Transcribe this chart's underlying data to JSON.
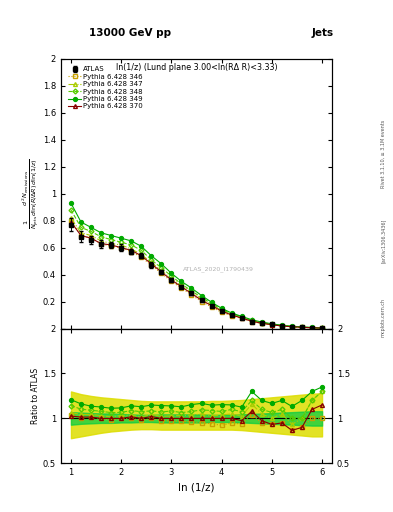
{
  "title_top": "13000 GeV pp",
  "title_right": "Jets",
  "panel_title": "ln(1/z) (Lund plane 3.00<ln(RΔ R)<3.33)",
  "xlabel": "ln (1/z)",
  "ylabel_ratio": "Ratio to ATLAS",
  "watermark": "ATLAS_2020_I1790439",
  "right_label": "Rivet 3.1.10, ≥ 3.1M events",
  "right_label2": "[arXiv:1306.3436]",
  "right_label3": "mcplots.cern.ch",
  "x_data": [
    1.0,
    1.2,
    1.4,
    1.6,
    1.8,
    2.0,
    2.2,
    2.4,
    2.6,
    2.8,
    3.0,
    3.2,
    3.4,
    3.6,
    3.8,
    4.0,
    4.2,
    4.4,
    4.6,
    4.8,
    5.0,
    5.2,
    5.4,
    5.6,
    5.8,
    6.0
  ],
  "atlas_y": [
    0.77,
    0.68,
    0.66,
    0.63,
    0.62,
    0.6,
    0.57,
    0.54,
    0.47,
    0.42,
    0.36,
    0.31,
    0.26,
    0.21,
    0.17,
    0.13,
    0.1,
    0.08,
    0.05,
    0.04,
    0.03,
    0.02,
    0.015,
    0.01,
    0.005,
    0.002
  ],
  "atlas_err": [
    0.05,
    0.04,
    0.03,
    0.03,
    0.025,
    0.025,
    0.02,
    0.02,
    0.02,
    0.015,
    0.012,
    0.01,
    0.009,
    0.008,
    0.007,
    0.006,
    0.005,
    0.004,
    0.003,
    0.003,
    0.002,
    0.002,
    0.0015,
    0.001,
    0.001,
    0.0005
  ],
  "p346_y": [
    0.8,
    0.69,
    0.67,
    0.63,
    0.61,
    0.6,
    0.57,
    0.53,
    0.47,
    0.41,
    0.35,
    0.3,
    0.25,
    0.2,
    0.16,
    0.12,
    0.095,
    0.075,
    0.052,
    0.038,
    0.028,
    0.019,
    0.013,
    0.009,
    0.005,
    0.002
  ],
  "p347_y": [
    0.82,
    0.71,
    0.69,
    0.65,
    0.63,
    0.62,
    0.59,
    0.55,
    0.49,
    0.43,
    0.37,
    0.32,
    0.27,
    0.22,
    0.175,
    0.135,
    0.105,
    0.082,
    0.058,
    0.042,
    0.03,
    0.021,
    0.014,
    0.01,
    0.006,
    0.003
  ],
  "p348_y": [
    0.88,
    0.75,
    0.72,
    0.68,
    0.66,
    0.64,
    0.62,
    0.58,
    0.51,
    0.45,
    0.39,
    0.33,
    0.28,
    0.23,
    0.185,
    0.14,
    0.11,
    0.086,
    0.06,
    0.044,
    0.032,
    0.022,
    0.015,
    0.01,
    0.007,
    0.003
  ],
  "p349_y": [
    0.93,
    0.79,
    0.75,
    0.71,
    0.69,
    0.67,
    0.65,
    0.61,
    0.54,
    0.48,
    0.41,
    0.35,
    0.3,
    0.245,
    0.195,
    0.15,
    0.115,
    0.09,
    0.065,
    0.048,
    0.035,
    0.024,
    0.017,
    0.012,
    0.008,
    0.004
  ],
  "p370_y": [
    0.79,
    0.69,
    0.67,
    0.63,
    0.62,
    0.6,
    0.58,
    0.54,
    0.48,
    0.42,
    0.36,
    0.31,
    0.26,
    0.21,
    0.17,
    0.13,
    0.1,
    0.078,
    0.054,
    0.039,
    0.028,
    0.019,
    0.013,
    0.009,
    0.006,
    0.003
  ],
  "color_346": "#c8a000",
  "color_347": "#aacc00",
  "color_348": "#55cc00",
  "color_349": "#00aa00",
  "color_370": "#880000",
  "color_atlas": "#000000",
  "ylim_main": [
    0.0,
    2.0
  ],
  "ylim_ratio": [
    0.5,
    2.0
  ],
  "xlim": [
    0.8,
    6.2
  ],
  "ratio_346": [
    1.04,
    1.01,
    1.015,
    1.0,
    0.984,
    1.0,
    1.0,
    0.98,
    1.0,
    0.976,
    0.972,
    0.968,
    0.962,
    0.952,
    0.941,
    0.923,
    0.95,
    0.9375,
    1.04,
    0.95,
    0.933,
    0.95,
    0.867,
    0.9,
    1.0,
    1.0
  ],
  "ratio_347": [
    1.065,
    1.044,
    1.045,
    1.032,
    1.016,
    1.033,
    1.035,
    1.019,
    1.043,
    1.024,
    1.028,
    1.032,
    1.038,
    1.048,
    1.029,
    1.038,
    1.05,
    1.025,
    1.16,
    1.05,
    1.0,
    1.05,
    0.933,
    1.0,
    1.2,
    1.3
  ],
  "ratio_348": [
    1.143,
    1.103,
    1.091,
    1.079,
    1.065,
    1.067,
    1.088,
    1.074,
    1.085,
    1.071,
    1.083,
    1.065,
    1.077,
    1.095,
    1.088,
    1.077,
    1.1,
    1.075,
    1.2,
    1.1,
    1.067,
    1.1,
    1.0,
    1.0,
    1.2,
    1.3
  ],
  "ratio_349": [
    1.208,
    1.162,
    1.136,
    1.127,
    1.113,
    1.117,
    1.14,
    1.13,
    1.149,
    1.143,
    1.139,
    1.129,
    1.154,
    1.167,
    1.147,
    1.154,
    1.15,
    1.125,
    1.3,
    1.2,
    1.167,
    1.2,
    1.133,
    1.2,
    1.3,
    1.35
  ],
  "ratio_370": [
    1.026,
    1.015,
    1.015,
    1.0,
    1.0,
    1.0,
    1.018,
    1.0,
    1.021,
    1.0,
    1.0,
    1.0,
    1.0,
    1.0,
    1.0,
    1.0,
    1.0,
    0.975,
    1.08,
    0.975,
    0.933,
    0.95,
    0.867,
    0.9,
    1.1,
    1.15
  ],
  "band_green_low": [
    0.93,
    0.94,
    0.945,
    0.95,
    0.95,
    0.955,
    0.955,
    0.96,
    0.96,
    0.955,
    0.955,
    0.955,
    0.955,
    0.955,
    0.96,
    0.96,
    0.96,
    0.955,
    0.95,
    0.945,
    0.94,
    0.935,
    0.93,
    0.925,
    0.92,
    0.92
  ],
  "band_green_high": [
    1.07,
    1.065,
    1.06,
    1.055,
    1.055,
    1.05,
    1.045,
    1.04,
    1.04,
    1.045,
    1.045,
    1.045,
    1.045,
    1.045,
    1.04,
    1.04,
    1.04,
    1.045,
    1.05,
    1.055,
    1.06,
    1.065,
    1.07,
    1.075,
    1.08,
    1.08
  ],
  "band_yellow_low": [
    0.78,
    0.8,
    0.82,
    0.84,
    0.855,
    0.865,
    0.875,
    0.88,
    0.88,
    0.875,
    0.875,
    0.875,
    0.875,
    0.875,
    0.875,
    0.875,
    0.875,
    0.87,
    0.86,
    0.85,
    0.84,
    0.83,
    0.82,
    0.81,
    0.8,
    0.8
  ],
  "band_yellow_high": [
    1.3,
    1.27,
    1.25,
    1.235,
    1.225,
    1.215,
    1.205,
    1.195,
    1.19,
    1.19,
    1.19,
    1.19,
    1.19,
    1.19,
    1.195,
    1.195,
    1.2,
    1.205,
    1.215,
    1.225,
    1.235,
    1.245,
    1.255,
    1.265,
    1.275,
    1.28
  ]
}
